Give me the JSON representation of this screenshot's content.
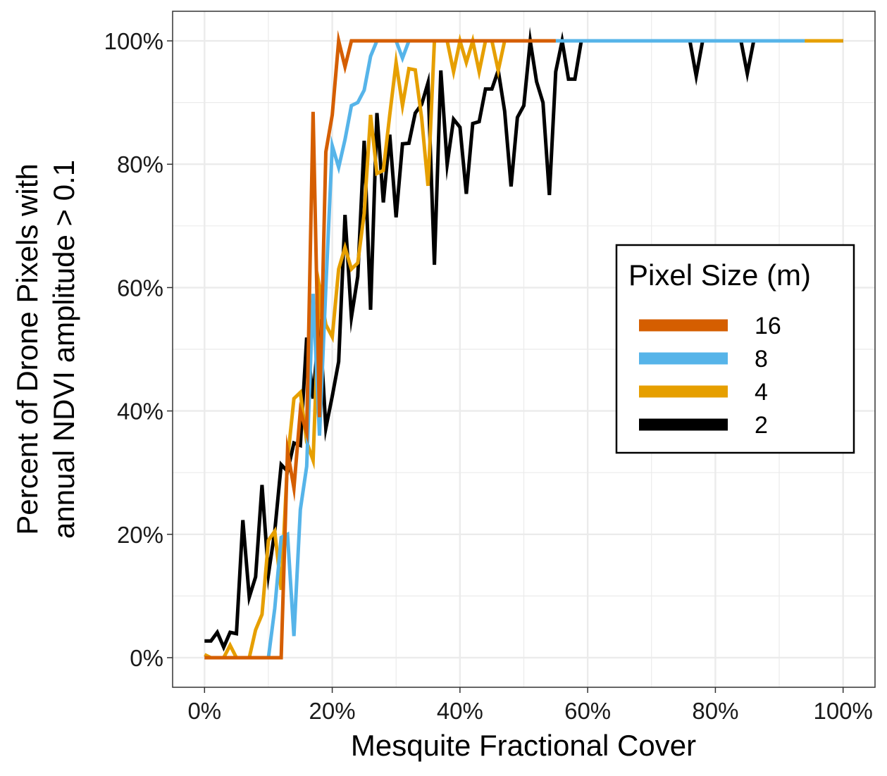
{
  "chart_data": {
    "type": "line",
    "title": "",
    "xlabel": "Mesquite Fractional Cover",
    "ylabel": [
      "Percent of Drone Pixels with",
      "annual NDVI amplitude > 0.1"
    ],
    "xlim": [
      -0.05,
      1.05
    ],
    "ylim": [
      -0.048,
      1.048
    ],
    "x_ticks": [
      0,
      0.2,
      0.4,
      0.6,
      0.8,
      1.0
    ],
    "x_tick_labels": [
      "0%",
      "20%",
      "40%",
      "60%",
      "80%",
      "100%"
    ],
    "y_ticks": [
      0,
      0.2,
      0.4,
      0.6,
      0.8,
      1.0
    ],
    "y_tick_labels": [
      "0%",
      "20%",
      "40%",
      "60%",
      "80%",
      "100%"
    ],
    "grid": true,
    "legend": {
      "title": "Pixel Size (m)",
      "placement": "right-inside"
    },
    "series": [
      {
        "name": "2",
        "color": "#000000",
        "x": [
          0.0,
          0.01,
          0.02,
          0.03,
          0.04,
          0.05,
          0.06,
          0.07,
          0.08,
          0.09,
          0.1,
          0.11,
          0.12,
          0.13,
          0.14,
          0.15,
          0.16,
          0.17,
          0.18,
          0.19,
          0.2,
          0.21,
          0.22,
          0.23,
          0.24,
          0.25,
          0.26,
          0.27,
          0.28,
          0.29,
          0.3,
          0.31,
          0.32,
          0.33,
          0.34,
          0.35,
          0.36,
          0.37,
          0.38,
          0.39,
          0.4,
          0.41,
          0.42,
          0.43,
          0.44,
          0.45,
          0.46,
          0.47,
          0.48,
          0.49,
          0.5,
          0.51,
          0.52,
          0.53,
          0.54,
          0.55,
          0.56,
          0.57,
          0.58,
          0.59,
          0.6,
          0.65,
          0.7,
          0.75,
          0.76,
          0.77,
          0.78,
          0.8,
          0.84,
          0.85,
          0.86,
          0.9,
          0.95,
          1.0
        ],
        "y": [
          0.027,
          0.027,
          0.041,
          0.017,
          0.041,
          0.039,
          0.223,
          0.098,
          0.131,
          0.28,
          0.135,
          0.205,
          0.313,
          0.302,
          0.348,
          0.344,
          0.519,
          0.42,
          0.549,
          0.372,
          0.424,
          0.48,
          0.718,
          0.552,
          0.618,
          0.838,
          0.564,
          0.883,
          0.738,
          0.848,
          0.714,
          0.833,
          0.834,
          0.883,
          0.897,
          0.932,
          0.637,
          0.952,
          0.8,
          0.873,
          0.86,
          0.752,
          0.866,
          0.869,
          0.922,
          0.922,
          0.952,
          0.886,
          0.764,
          0.876,
          0.895,
          1.0,
          0.934,
          0.9,
          0.75,
          0.95,
          1.0,
          0.938,
          0.938,
          1.0,
          1.0,
          1.0,
          1.0,
          1.0,
          1.0,
          0.943,
          1.0,
          1.0,
          1.0,
          0.947,
          1.0,
          1.0,
          1.0,
          1.0
        ]
      },
      {
        "name": "4",
        "color": "#E69F00",
        "x": [
          0.0,
          0.01,
          0.02,
          0.03,
          0.04,
          0.05,
          0.06,
          0.07,
          0.08,
          0.09,
          0.1,
          0.11,
          0.12,
          0.13,
          0.14,
          0.15,
          0.16,
          0.17,
          0.18,
          0.19,
          0.2,
          0.21,
          0.22,
          0.23,
          0.24,
          0.25,
          0.26,
          0.27,
          0.28,
          0.29,
          0.3,
          0.31,
          0.32,
          0.33,
          0.34,
          0.35,
          0.36,
          0.37,
          0.38,
          0.39,
          0.4,
          0.41,
          0.42,
          0.43,
          0.44,
          0.45,
          0.46,
          0.47,
          0.48,
          0.49,
          0.5,
          0.55,
          0.6,
          0.7,
          0.8,
          0.9,
          0.94,
          1.0
        ],
        "y": [
          0.005,
          0.0,
          0.0,
          0.0,
          0.02,
          0.0,
          0.0,
          0.0,
          0.045,
          0.07,
          0.19,
          0.205,
          0.11,
          0.32,
          0.42,
          0.43,
          0.35,
          0.32,
          0.6,
          0.54,
          0.52,
          0.63,
          0.665,
          0.63,
          0.64,
          0.72,
          0.88,
          0.785,
          0.79,
          0.88,
          0.965,
          0.895,
          0.955,
          0.953,
          0.875,
          0.765,
          1.0,
          1.0,
          1.0,
          0.95,
          1.0,
          0.965,
          1.0,
          0.95,
          1.0,
          1.0,
          0.952,
          1.0,
          1.0,
          1.0,
          1.0,
          1.0,
          1.0,
          1.0,
          1.0,
          1.0,
          1.0,
          1.0
        ]
      },
      {
        "name": "8",
        "color": "#56B4E9",
        "x": [
          0.0,
          0.01,
          0.02,
          0.03,
          0.04,
          0.05,
          0.06,
          0.07,
          0.08,
          0.09,
          0.1,
          0.11,
          0.12,
          0.13,
          0.14,
          0.15,
          0.16,
          0.17,
          0.18,
          0.19,
          0.2,
          0.21,
          0.22,
          0.23,
          0.24,
          0.25,
          0.26,
          0.27,
          0.28,
          0.29,
          0.3,
          0.31,
          0.32,
          0.4,
          0.5,
          0.6,
          0.7,
          0.8,
          0.9,
          0.94
        ],
        "y": [
          0.0,
          0.0,
          0.0,
          0.0,
          0.0,
          0.0,
          0.0,
          0.0,
          0.0,
          0.0,
          0.0,
          0.08,
          0.195,
          0.2,
          0.035,
          0.24,
          0.31,
          0.59,
          0.36,
          0.6,
          0.83,
          0.795,
          0.84,
          0.895,
          0.9,
          0.92,
          0.975,
          1.0,
          1.0,
          1.0,
          1.0,
          0.972,
          1.0,
          1.0,
          1.0,
          1.0,
          1.0,
          1.0,
          1.0,
          1.0
        ]
      },
      {
        "name": "16",
        "color": "#D55E00",
        "x": [
          0.0,
          0.01,
          0.02,
          0.03,
          0.04,
          0.05,
          0.06,
          0.07,
          0.08,
          0.09,
          0.1,
          0.11,
          0.12,
          0.13,
          0.14,
          0.15,
          0.16,
          0.17,
          0.18,
          0.19,
          0.2,
          0.21,
          0.22,
          0.23,
          0.24,
          0.25,
          0.3,
          0.35,
          0.4,
          0.45,
          0.5,
          0.55
        ],
        "y": [
          0.0,
          0.0,
          0.0,
          0.0,
          0.0,
          0.0,
          0.0,
          0.0,
          0.0,
          0.0,
          0.0,
          0.0,
          0.0,
          0.335,
          0.275,
          0.4,
          0.365,
          0.885,
          0.39,
          0.82,
          0.88,
          1.0,
          0.958,
          1.0,
          1.0,
          1.0,
          1.0,
          1.0,
          1.0,
          1.0,
          1.0,
          1.0
        ]
      }
    ],
    "legend_order": [
      "16",
      "8",
      "4",
      "2"
    ]
  }
}
